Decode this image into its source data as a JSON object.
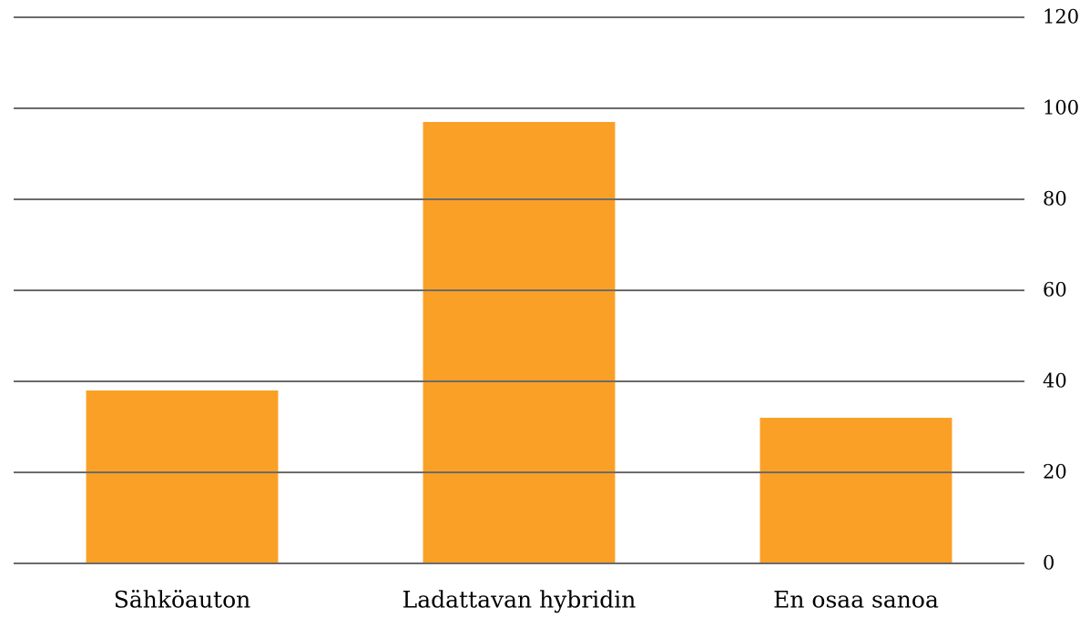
{
  "chart_data": {
    "type": "bar",
    "categories": [
      "Sähköauton",
      "Ladattavan hybridin",
      "En osaa sanoa"
    ],
    "values": [
      38,
      97,
      32
    ],
    "color": "#fba026",
    "ylim": [
      0,
      120
    ],
    "yticks": [
      0,
      20,
      40,
      60,
      80,
      100,
      120
    ],
    "grid": true
  }
}
